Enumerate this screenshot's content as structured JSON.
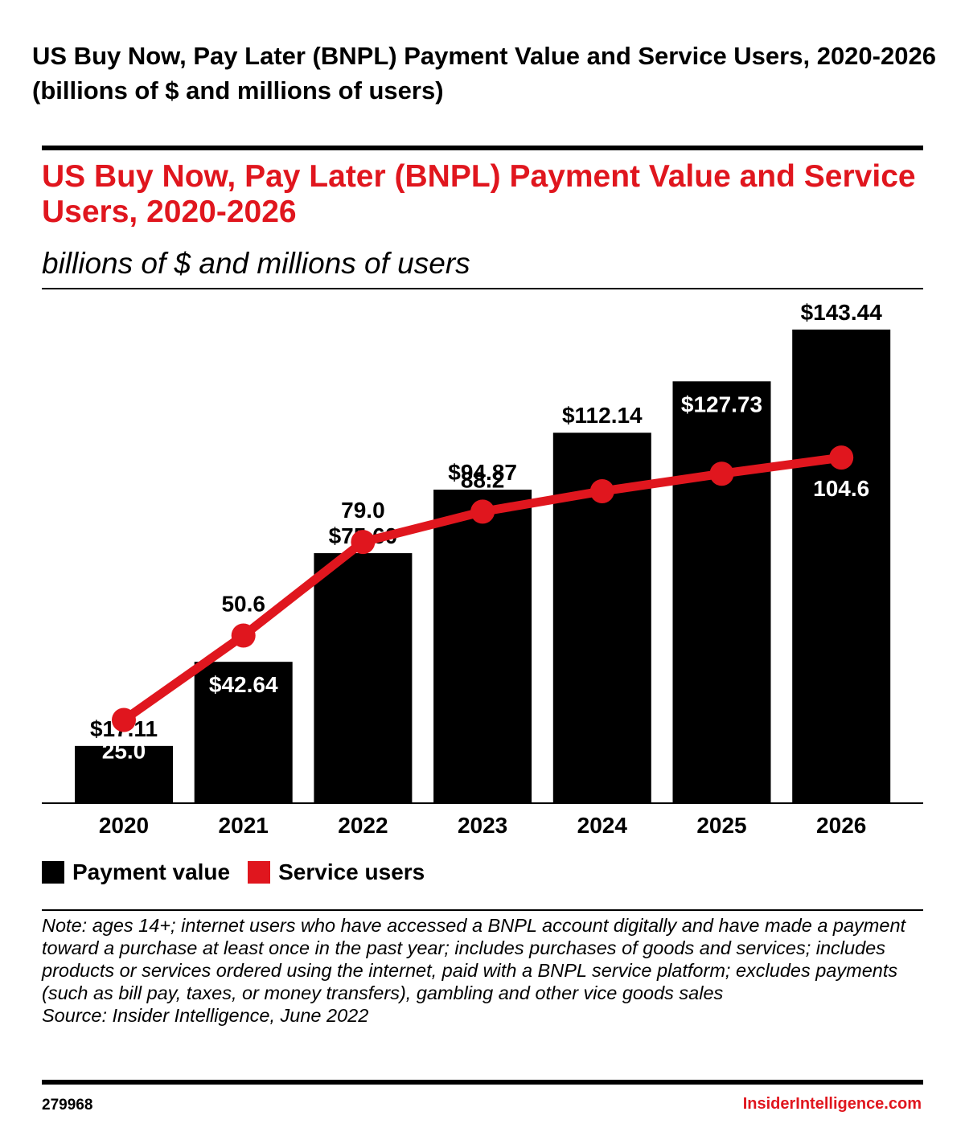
{
  "page": {
    "heading": "US Buy Now, Pay Later (BNPL) Payment Value and Service Users, 2020-2026 (billions of $ and millions of users)"
  },
  "colors": {
    "accent": "#e0161e",
    "bars": "#000000",
    "background": "#ffffff"
  },
  "chart_data": {
    "type": "bar",
    "title": "US Buy Now, Pay Later (BNPL) Payment Value and Service Users, 2020-2026",
    "subtitle": "billions of $ and millions of users",
    "categories": [
      "2020",
      "2021",
      "2022",
      "2023",
      "2024",
      "2025",
      "2026"
    ],
    "series": [
      {
        "name": "Payment value",
        "type": "bar",
        "color": "#000000",
        "values": [
          17.11,
          42.64,
          75.6,
          94.87,
          112.14,
          127.73,
          143.44
        ],
        "labels": [
          "$17.11",
          "$42.64",
          "$75.60",
          "$94.87",
          "$112.14",
          "$127.73",
          "$143.44"
        ]
      },
      {
        "name": "Service users",
        "type": "line",
        "color": "#e0161e",
        "values": [
          25.0,
          50.6,
          79.0,
          88.2,
          94.4,
          99.7,
          104.6
        ],
        "labels": [
          "25.0",
          "50.6",
          "79.0",
          "88.2",
          "94.4",
          "99.7",
          "104.6"
        ]
      }
    ],
    "xlabel": "",
    "ylabel": "",
    "ylim": [
      0,
      150
    ],
    "grid": false,
    "legend": "bottom-left"
  },
  "notes": {
    "note": "Note: ages 14+; internet users who have accessed a BNPL account digitally and have made a payment toward a purchase at least once in the past year; includes purchases of goods and services; includes products or services ordered using the internet, paid with a BNPL service platform; excludes payments (such as bill pay, taxes, or money transfers), gambling and other vice goods sales",
    "source": "Source: Insider Intelligence, June 2022"
  },
  "footer": {
    "chart_id": "279968",
    "brand": "InsiderIntelligence.com"
  }
}
